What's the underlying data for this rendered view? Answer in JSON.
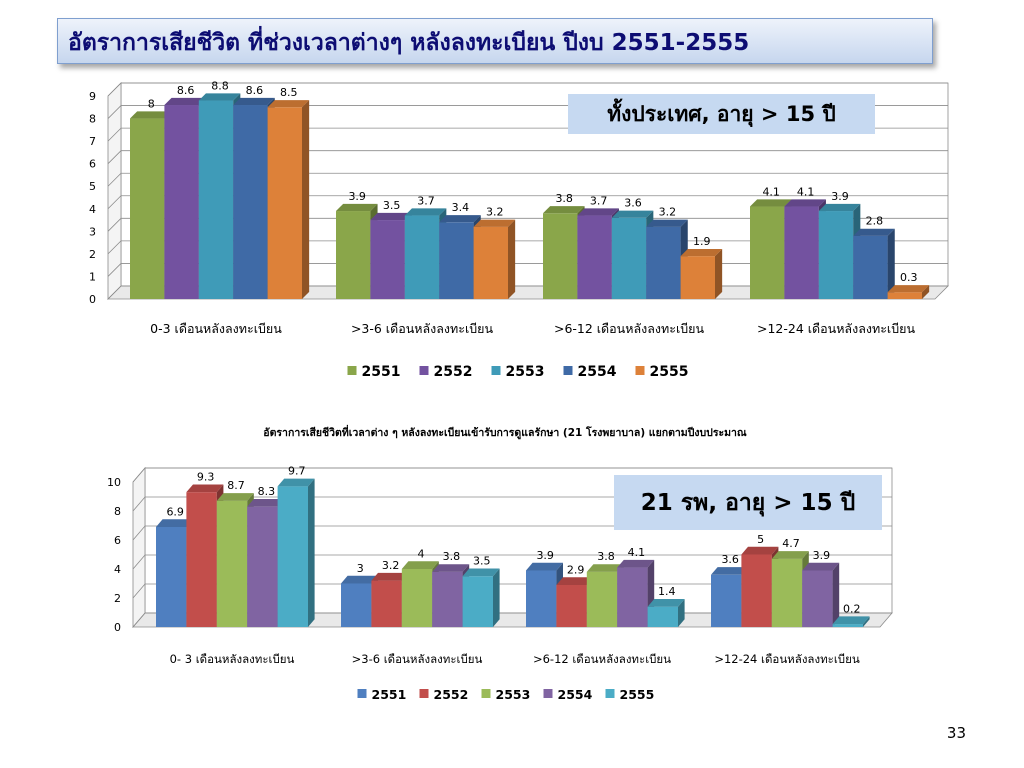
{
  "slide": {
    "title": "อัตราการเสียชีวิต ที่ช่วงเวลาต่างๆ หลังลงทะเบียน ปีงบ 2551-2555",
    "page_number": "33"
  },
  "chart_data": [
    {
      "type": "bar",
      "title": "",
      "box_label": "ทั้งประเทศ, อายุ  > 15 ปี",
      "categories": [
        "0-3 เดือนหลังลงทะเบียน",
        ">3-6 เดือนหลังลงทะเบียน",
        ">6-12 เดือนหลังลงทะเบียน",
        ">12-24 เดือนหลังลงทะเบียน"
      ],
      "series": [
        {
          "name": "2551",
          "color": "#8aa64a",
          "values": [
            8,
            3.9,
            3.8,
            4.1
          ]
        },
        {
          "name": "2552",
          "color": "#7352a0",
          "values": [
            8.6,
            3.5,
            3.7,
            4.1
          ]
        },
        {
          "name": "2553",
          "color": "#3f9bb8",
          "values": [
            8.8,
            3.7,
            3.6,
            3.9
          ]
        },
        {
          "name": "2554",
          "color": "#3f6aa6",
          "values": [
            8.6,
            3.4,
            3.2,
            2.8
          ]
        },
        {
          "name": "2555",
          "color": "#dd8139",
          "values": [
            8.5,
            3.2,
            1.9,
            0.3
          ]
        }
      ],
      "ylim": [
        0,
        9
      ],
      "yticks": [
        0,
        1,
        2,
        3,
        4,
        5,
        6,
        7,
        8,
        9
      ],
      "grid": true,
      "legend": "bottom"
    },
    {
      "type": "bar",
      "title": "อัตราการเสียชีวิตที่เวลาต่าง ๆ หลังลงทะเบียนเข้ารับการดูแลรักษา  (21 โรงพยาบาล)  แยกตามปีงบประมาณ",
      "box_label": "21 รพ,  อายุ > 15 ปี",
      "categories": [
        "0- 3 เดือนหลังลงทะเบียน",
        ">3-6 เดือนหลังลงทะเบียน",
        ">6-12 เดือนหลังลงทะเบียน",
        ">12-24 เดือนหลังลงทะเบียน"
      ],
      "series": [
        {
          "name": "2551",
          "color": "#4f7fc0",
          "values": [
            6.9,
            3,
            3.9,
            3.6
          ]
        },
        {
          "name": "2552",
          "color": "#c24e4b",
          "values": [
            9.3,
            3.2,
            2.9,
            5
          ]
        },
        {
          "name": "2553",
          "color": "#9bbb59",
          "values": [
            8.7,
            4,
            3.8,
            4.7
          ]
        },
        {
          "name": "2554",
          "color": "#8064a2",
          "values": [
            8.3,
            3.8,
            4.1,
            3.9
          ]
        },
        {
          "name": "2555",
          "color": "#4bacc6",
          "values": [
            9.7,
            3.5,
            1.4,
            0.2
          ]
        }
      ],
      "ylim": [
        0,
        10
      ],
      "yticks": [
        0,
        2,
        4,
        6,
        8,
        10
      ],
      "grid": true,
      "legend": "bottom"
    }
  ]
}
